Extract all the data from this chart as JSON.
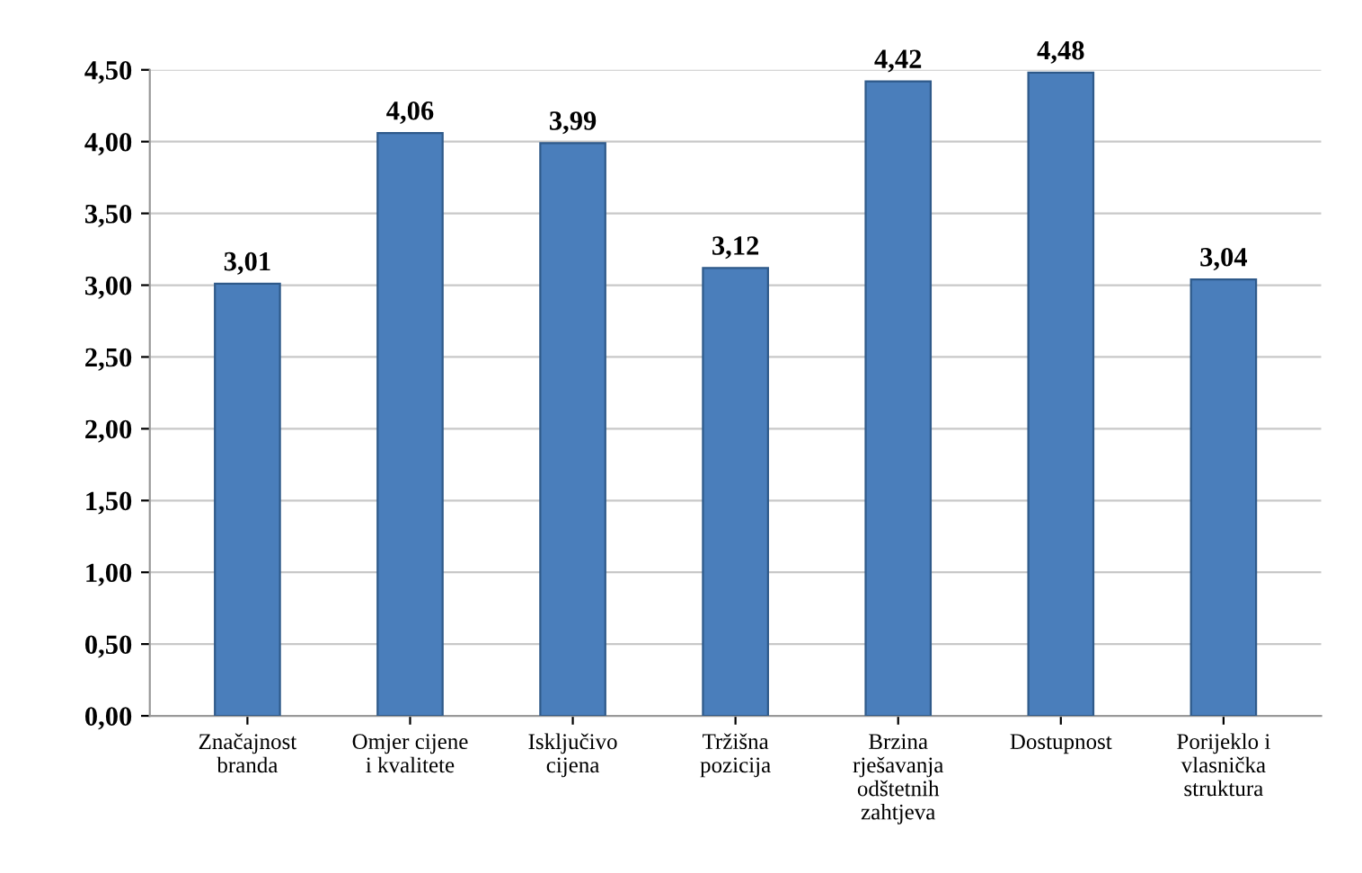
{
  "chart_data": {
    "type": "bar",
    "categories": [
      "Značajnost\nbranda",
      "Omjer cijene\ni kvalitete",
      "Isključivo\ncijena",
      "Tržišna\npozicija",
      "Brzina\nrješavanja\nodštetnih\nzahtjeva",
      "Dostupnost",
      "Porijeklo i\nvlasnička\nstruktura"
    ],
    "values": [
      3.01,
      4.06,
      3.99,
      3.12,
      4.42,
      4.48,
      3.04
    ],
    "value_labels": [
      "3,01",
      "4,06",
      "3,99",
      "3,12",
      "4,42",
      "4,48",
      "3,04"
    ],
    "color": "#4a7ebb",
    "ylim": [
      0,
      4.5
    ],
    "yticks": [
      {
        "value": 0,
        "label": "0,00"
      },
      {
        "value": 0.5,
        "label": "0,50"
      },
      {
        "value": 1,
        "label": "1,00"
      },
      {
        "value": 1.5,
        "label": "1,50"
      },
      {
        "value": 2,
        "label": "2,00"
      },
      {
        "value": 2.5,
        "label": "2,50"
      },
      {
        "value": 3,
        "label": "3,00"
      },
      {
        "value": 3.5,
        "label": "3,50"
      },
      {
        "value": 4,
        "label": "4,00"
      },
      {
        "value": 4.5,
        "label": "4,50"
      }
    ],
    "grid": "y"
  }
}
